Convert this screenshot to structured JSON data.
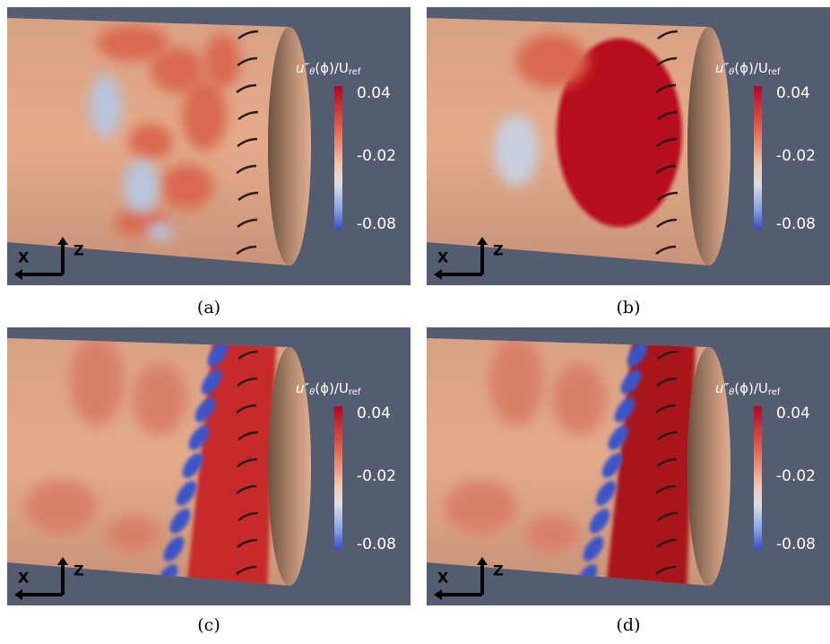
{
  "panels": [
    {
      "caption": "(a)",
      "colorbar": {
        "title": [
          "u″",
          "θ",
          "(ϕ)/U",
          "ref"
        ],
        "ticks": [
          "0.04",
          "-0.02",
          "-0.08"
        ]
      },
      "axes": [
        "X",
        "Z"
      ]
    },
    {
      "caption": "(b)",
      "colorbar": {
        "title": [
          "u″",
          "θ",
          "(ϕ)/U",
          "ref"
        ],
        "ticks": [
          "0.04",
          "-0.02",
          "-0.08"
        ]
      },
      "axes": [
        "X",
        "Z"
      ]
    },
    {
      "caption": "(c)",
      "colorbar": {
        "title": [
          "u″",
          "θ",
          "(ϕ)/U",
          "ref"
        ],
        "ticks": [
          "0.04",
          "-0.02",
          "-0.08"
        ]
      },
      "axes": [
        "X",
        "Z"
      ]
    },
    {
      "caption": "(d)",
      "colorbar": {
        "title": [
          "u″",
          "θ",
          "(ϕ)/U",
          "ref"
        ],
        "ticks": [
          "0.04",
          "-0.02",
          "-0.08"
        ]
      },
      "axes": [
        "X",
        "Z"
      ]
    }
  ]
}
